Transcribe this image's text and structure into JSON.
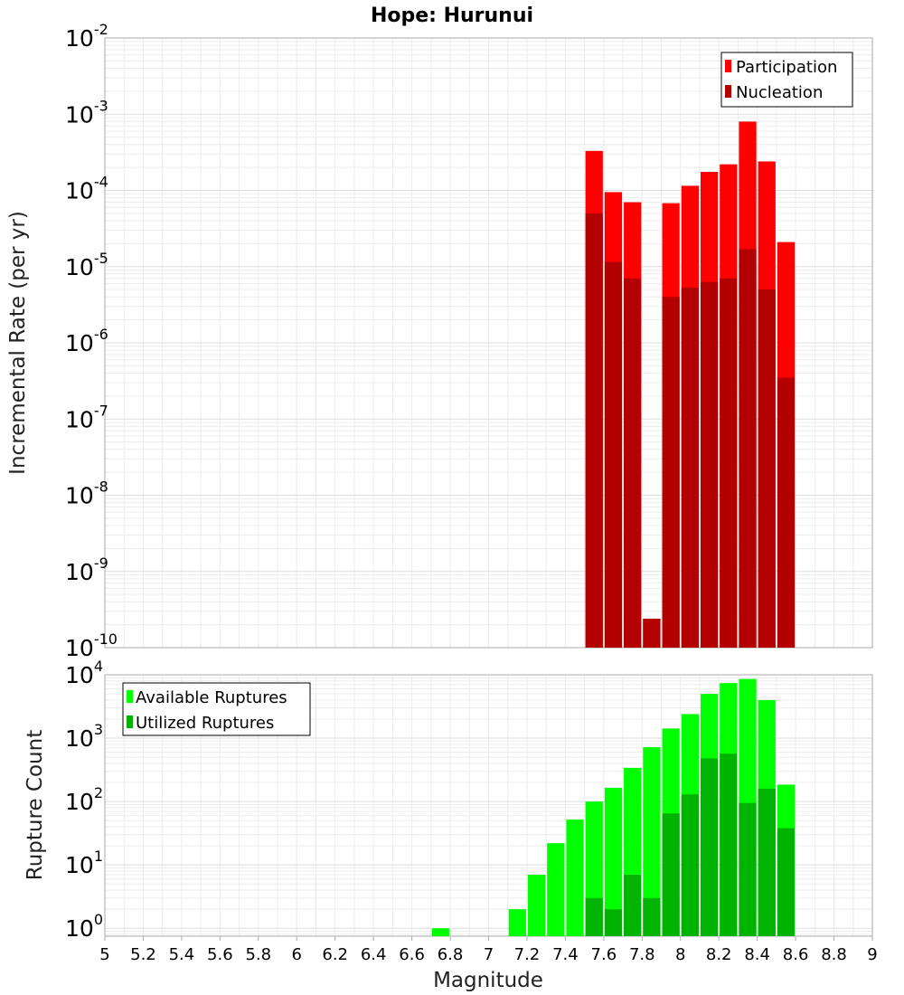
{
  "chart_data": [
    {
      "type": "bar",
      "title": "Hope: Hurunui",
      "ylabel": "Incremental Rate (per yr)",
      "xlabel": "",
      "yscale": "log",
      "ylim": [
        1e-10,
        0.01
      ],
      "xlim": [
        5,
        9
      ],
      "y_ticks": [
        {
          "base": "10",
          "exp": "-10"
        },
        {
          "base": "10",
          "exp": "-9"
        },
        {
          "base": "10",
          "exp": "-8"
        },
        {
          "base": "10",
          "exp": "-7"
        },
        {
          "base": "10",
          "exp": "-6"
        },
        {
          "base": "10",
          "exp": "-5"
        },
        {
          "base": "10",
          "exp": "-4"
        },
        {
          "base": "10",
          "exp": "-3"
        },
        {
          "base": "10",
          "exp": "-2"
        }
      ],
      "grid": true,
      "legend_position": "top-right",
      "bar_width": 0.1,
      "x": [
        7.55,
        7.65,
        7.75,
        7.85,
        7.95,
        8.05,
        8.15,
        8.25,
        8.35,
        8.45,
        8.55
      ],
      "series": [
        {
          "name": "Participation",
          "color": "#ff0000",
          "values": [
            0.00033,
            9.5e-05,
            7e-05,
            2.4e-10,
            6.8e-05,
            0.000115,
            0.000175,
            0.00022,
            0.0008,
            0.00024,
            2.1e-05
          ]
        },
        {
          "name": "Nucleation",
          "color": "#b30000",
          "values": [
            5e-05,
            1.15e-05,
            7e-06,
            2.4e-10,
            4e-06,
            5.3e-06,
            6.3e-06,
            7e-06,
            1.7e-05,
            5e-06,
            3.5e-07
          ]
        }
      ]
    },
    {
      "type": "bar",
      "title": "",
      "ylabel": "Rupture Count",
      "xlabel": "Magnitude",
      "yscale": "log",
      "ylim": [
        0.75,
        10000
      ],
      "xlim": [
        5,
        9
      ],
      "y_ticks": [
        {
          "value": 1,
          "base": "10",
          "exp": "0"
        },
        {
          "value": 10,
          "base": "10",
          "exp": "1"
        },
        {
          "value": 100,
          "base": "10",
          "exp": "2"
        },
        {
          "value": 1000,
          "base": "10",
          "exp": "3"
        },
        {
          "value": 10000,
          "base": "10",
          "exp": "4"
        }
      ],
      "x_tick_labels": [
        "5",
        "5.2",
        "5.4",
        "5.6",
        "5.8",
        "6",
        "6.2",
        "6.4",
        "6.6",
        "6.8",
        "7",
        "7.2",
        "7.4",
        "7.6",
        "7.8",
        "8",
        "8.2",
        "8.4",
        "8.6",
        "8.8",
        "9"
      ],
      "grid": true,
      "legend_position": "top-left",
      "bar_width": 0.1,
      "x": [
        6.75,
        7.15,
        7.25,
        7.35,
        7.45,
        7.55,
        7.65,
        7.75,
        7.85,
        7.95,
        8.05,
        8.15,
        8.25,
        8.35,
        8.45,
        8.55
      ],
      "series": [
        {
          "name": "Available Ruptures",
          "color": "#00ff00",
          "values": [
            1,
            2,
            7,
            22,
            52,
            100,
            165,
            340,
            720,
            1420,
            2400,
            5000,
            7400,
            8600,
            4000,
            185
          ]
        },
        {
          "name": "Utilized Ruptures",
          "color": "#00b300",
          "values": [
            0,
            0,
            0,
            0,
            0,
            3,
            2,
            7,
            3,
            65,
            130,
            480,
            570,
            95,
            160,
            38
          ]
        }
      ]
    }
  ]
}
